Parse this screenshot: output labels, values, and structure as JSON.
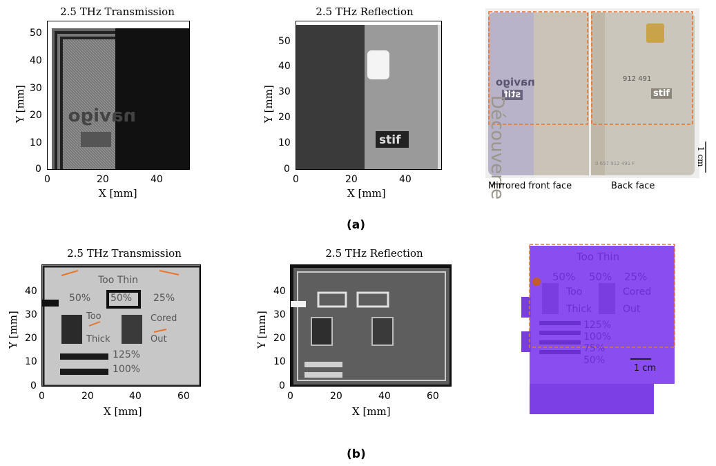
{
  "row_a": {
    "transmission_title": "2.5 THz Transmission",
    "reflection_title": "2.5 THz Reflection",
    "xlabel": "X [mm]",
    "ylabel": "Y [mm]",
    "y_ticks": [
      "50",
      "40",
      "30",
      "20",
      "10",
      "0"
    ],
    "x_ticks": [
      "0",
      "20",
      "40"
    ],
    "photo_caption_front": "Mirrored front face",
    "photo_caption_back": "Back face",
    "scale_label": "1 cm",
    "card_texts": {
      "navigo": "navigo",
      "stif": "stif",
      "decouverte": "Découverte",
      "card_number": "912 491",
      "serial": "0 657 912 491 F"
    },
    "label": "(a)"
  },
  "row_b": {
    "transmission_title": "2.5 THz Transmission",
    "reflection_title": "2.5 THz Reflection",
    "xlabel": "X [mm]",
    "ylabel": "Y [mm]",
    "y_ticks": [
      "40",
      "30",
      "20",
      "10",
      "0"
    ],
    "x_ticks": [
      "0",
      "20",
      "40",
      "60"
    ],
    "sample_texts": {
      "too_thin": "Too Thin",
      "p50a": "50%",
      "p50b": "50%",
      "p25": "25%",
      "too": "Too",
      "thick": "Thick",
      "cored": "Cored",
      "out": "Out",
      "p125": "125%",
      "p100": "100%",
      "p75": "75%",
      "p50c": "50%"
    },
    "scale_label": "1 cm",
    "label": "(b)"
  },
  "colors": {
    "orange_marker": "#e8742a",
    "purple_part": "#8a4df0"
  }
}
